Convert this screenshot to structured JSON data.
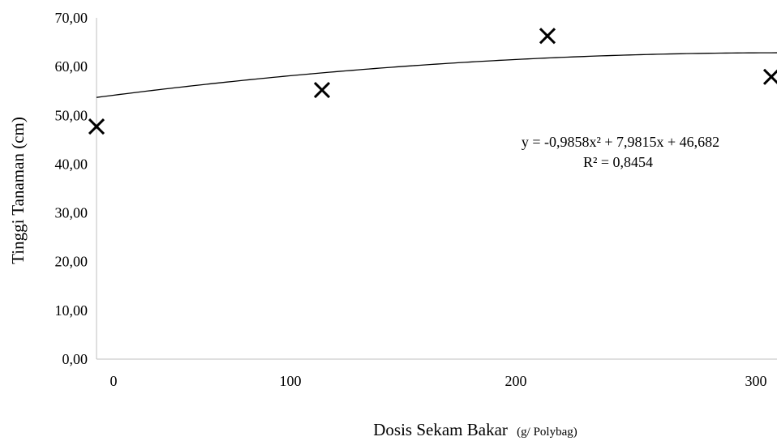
{
  "chart_data": {
    "type": "scatter",
    "ylabel": "Tinggi Tanaman (cm)",
    "xlabel": "Dosis Sekam Bakar",
    "xlabel_unit": "(g/ Polybag)",
    "x_ticks": [
      "0",
      "100",
      "200",
      "300"
    ],
    "y_ticks": [
      "0,00",
      "10,00",
      "20,00",
      "30,00",
      "40,00",
      "50,00",
      "60,00",
      "70,00"
    ],
    "ylim": [
      0,
      70
    ],
    "categories": [
      "0",
      "100",
      "200",
      "300"
    ],
    "series": [
      {
        "marker": "x",
        "values": [
          47.7,
          55.2,
          66.3,
          57.9
        ]
      }
    ],
    "trendline": {
      "type": "polynomial",
      "order": 2,
      "coefficients": [
        -0.9858,
        7.9815,
        46.682
      ],
      "equation": "y = -0,9858x² + 7,9815x + 46,682",
      "r_squared": "R² = 0,8454"
    },
    "grid": false,
    "legend": "none"
  }
}
